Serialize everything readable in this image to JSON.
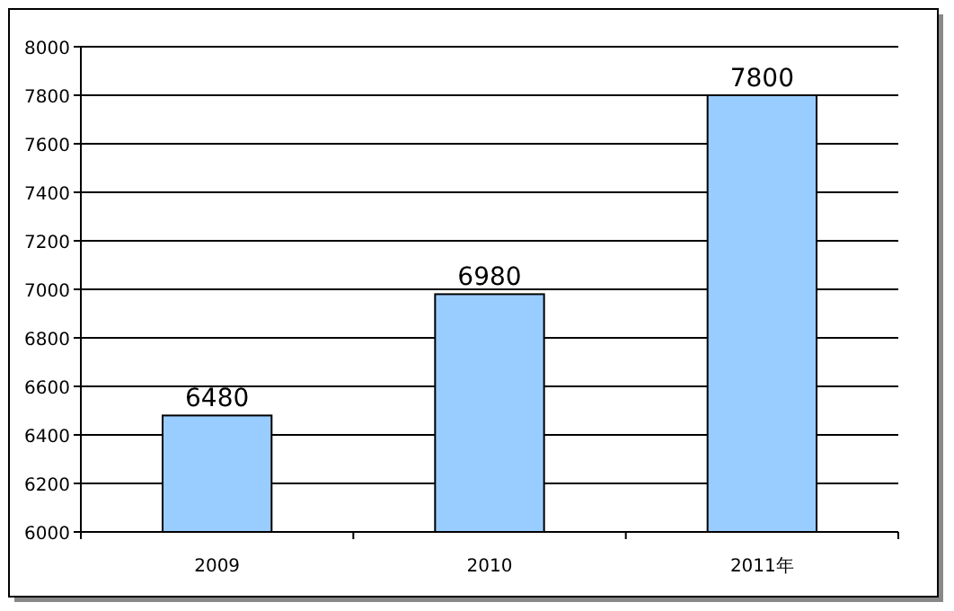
{
  "chart_data": {
    "type": "bar",
    "categories": [
      "2009",
      "2010",
      "2011年"
    ],
    "values": [
      6480,
      6980,
      7800
    ],
    "color": "#99ccff",
    "ylim": [
      6000,
      8000
    ],
    "yticks": [
      6000,
      6200,
      6400,
      6600,
      6800,
      7000,
      7200,
      7400,
      7600,
      7800,
      8000
    ],
    "grid": "y",
    "data_labels": true
  }
}
